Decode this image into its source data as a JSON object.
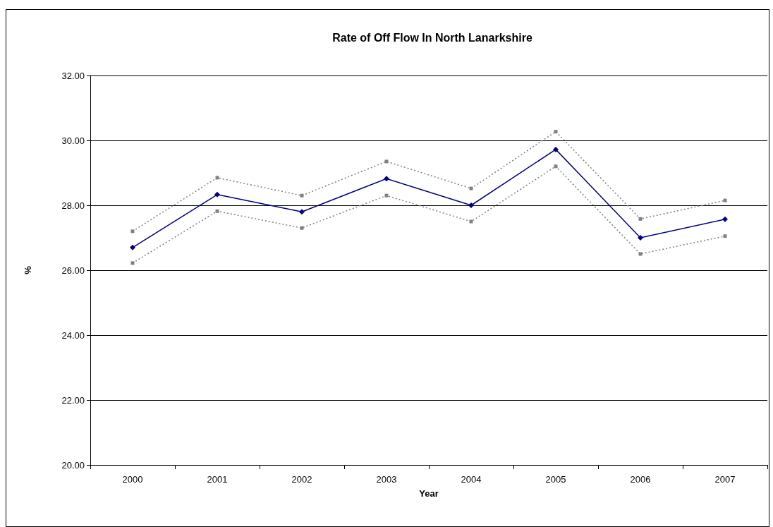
{
  "chart_data": {
    "type": "line",
    "title": "Rate of Off Flow In North Lanarkshire",
    "xlabel": "Year",
    "ylabel": "%",
    "categories": [
      "2000",
      "2001",
      "2002",
      "2003",
      "2004",
      "2005",
      "2006",
      "2007"
    ],
    "series": [
      {
        "color": "#000080",
        "marker": "diamond",
        "line_style": "solid",
        "values": [
          26.7,
          28.33,
          27.8,
          28.82,
          28.0,
          29.72,
          27.0,
          27.57
        ]
      },
      {
        "color": "#808080",
        "marker": "square",
        "line_style": "dotted",
        "values": [
          27.2,
          28.85,
          28.3,
          29.35,
          28.52,
          30.27,
          27.58,
          28.15
        ]
      },
      {
        "color": "#808080",
        "marker": "square",
        "line_style": "dotted",
        "values": [
          26.22,
          27.82,
          27.3,
          28.3,
          27.5,
          29.2,
          26.5,
          27.05
        ]
      }
    ],
    "ylim": [
      20,
      32
    ],
    "yticks": [
      {
        "value": 20,
        "label": "20.00"
      },
      {
        "value": 22,
        "label": "22.00"
      },
      {
        "value": 24,
        "label": "24.00"
      },
      {
        "value": 26,
        "label": "26.00"
      },
      {
        "value": 28,
        "label": "28.00"
      },
      {
        "value": 30,
        "label": "30.00"
      },
      {
        "value": 32,
        "label": "32.00"
      }
    ],
    "grid": "y"
  }
}
